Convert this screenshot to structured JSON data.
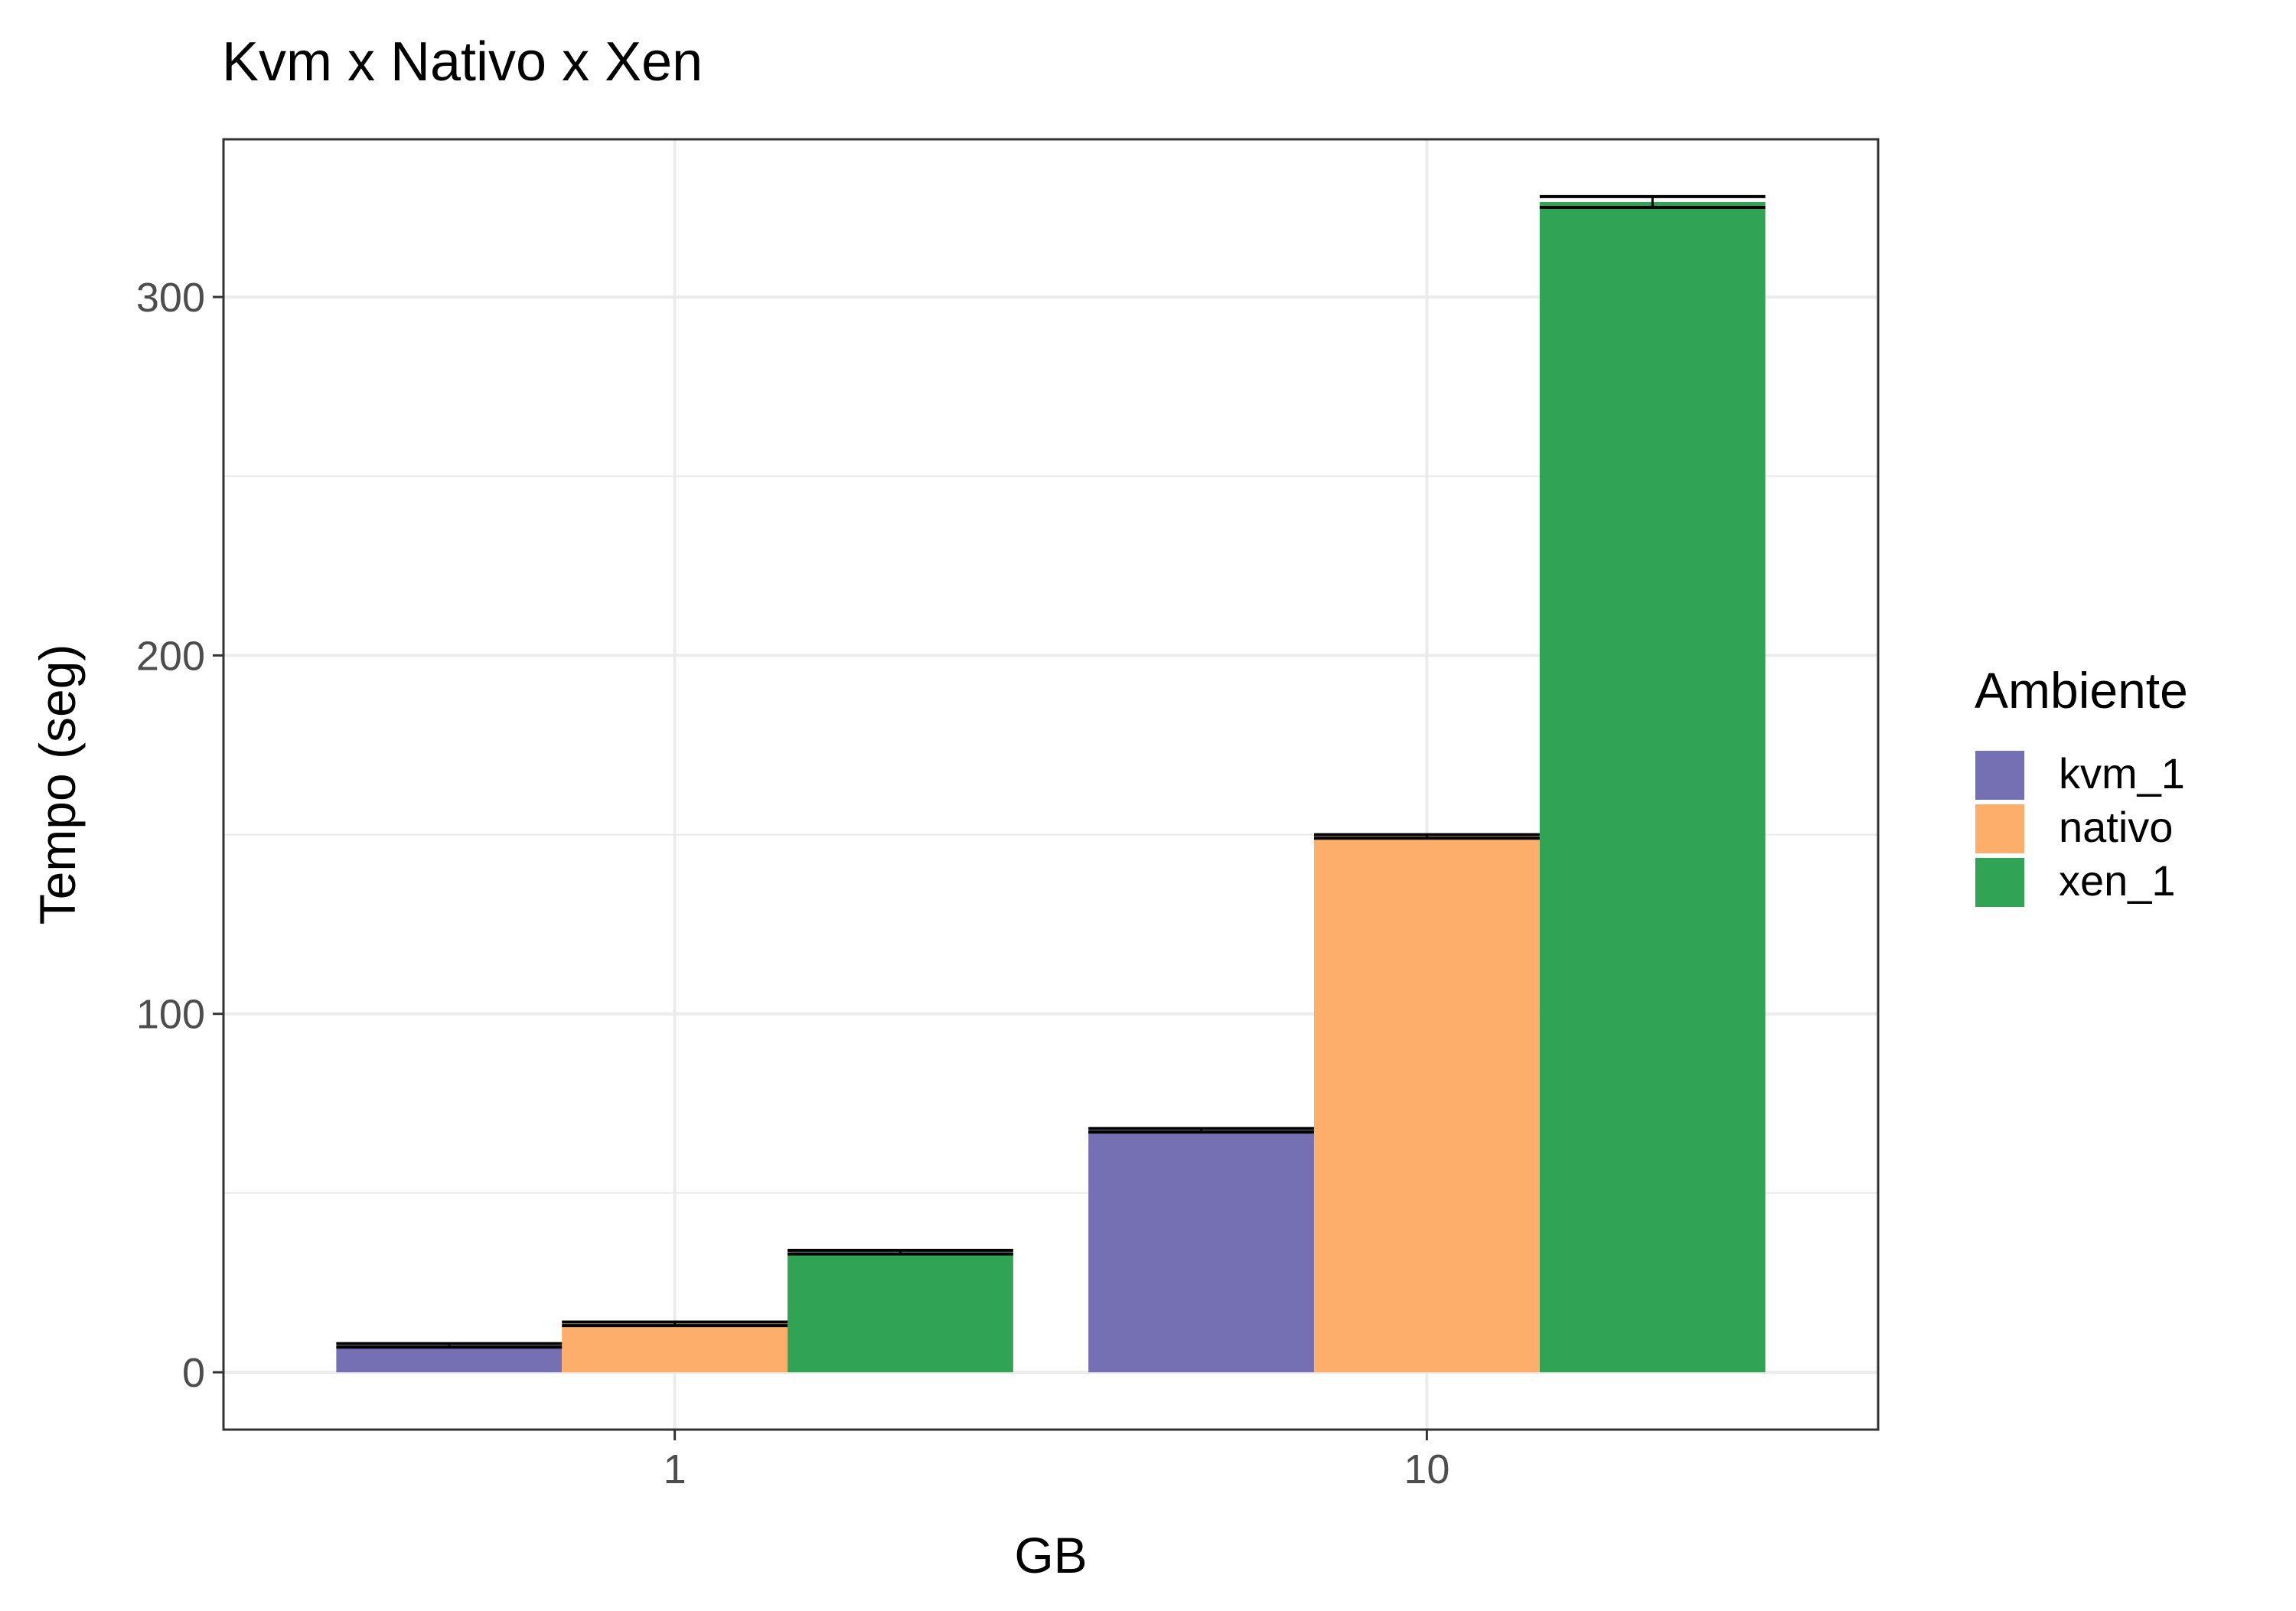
{
  "chart_data": {
    "type": "bar",
    "title": "Kvm x Nativo x Xen",
    "xlabel": "GB",
    "ylabel": "Tempo (seg)",
    "categories": [
      "1",
      "10"
    ],
    "series": [
      {
        "name": "kvm_1",
        "color": "#7570b3",
        "values": [
          7.5,
          67.5
        ],
        "error": [
          0.5,
          0.5
        ]
      },
      {
        "name": "nativo",
        "color": "#fdae6b",
        "values": [
          13.5,
          149.5
        ],
        "error": [
          0.5,
          0.5
        ]
      },
      {
        "name": "xen_1",
        "color": "#31a354",
        "values": [
          33.5,
          326.5
        ],
        "error": [
          0.5,
          1.5
        ]
      }
    ],
    "yticks": [
      0,
      100,
      200,
      300
    ],
    "ytick_labels": [
      "0",
      "100",
      "200",
      "300"
    ],
    "ylim": [
      -16,
      344
    ],
    "legend": {
      "title": "Ambiente",
      "position": "right"
    },
    "grid": true
  }
}
